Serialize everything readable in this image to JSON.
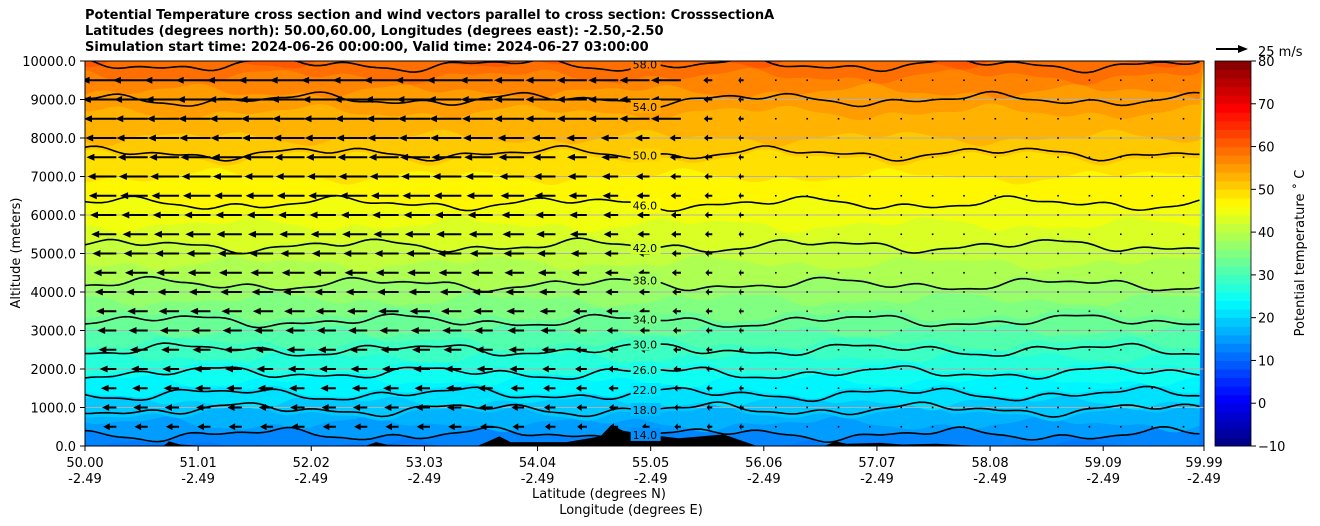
{
  "titles": [
    "Potential Temperature cross section and wind vectors parallel to cross section: CrosssectionA",
    "Latitudes (degrees north): 50.00,60.00, Longitudes (degrees east): -2.50,-2.50",
    "Simulation start time: 2024-06-26 00:00:00, Valid time: 2024-06-27 03:00:00"
  ],
  "chart_data": {
    "type": "heatmap",
    "subtype": "filled contour with contour lines and wind quiver",
    "ylabel": "Altitude (meters)",
    "xlabel_line1": "Latitude (degrees N)",
    "xlabel_line2": "Longitude (degrees E)",
    "ylim": [
      0,
      10000
    ],
    "yticks": [
      "0.0",
      "1000.0",
      "2000.0",
      "3000.0",
      "4000.0",
      "5000.0",
      "6000.0",
      "7000.0",
      "8000.0",
      "9000.0",
      "10000.0"
    ],
    "ytick_values": [
      0,
      1000,
      2000,
      3000,
      4000,
      5000,
      6000,
      7000,
      8000,
      9000,
      10000
    ],
    "xlim": [
      50.0,
      59.99
    ],
    "xtick_values": [
      50.0,
      51.01,
      52.02,
      53.03,
      54.04,
      55.05,
      56.06,
      57.07,
      58.08,
      59.09,
      59.99
    ],
    "xticks_lat": [
      "50.00",
      "51.01",
      "52.02",
      "53.03",
      "54.04",
      "55.05",
      "56.06",
      "57.07",
      "58.08",
      "59.09",
      "59.99"
    ],
    "xticks_lon": [
      "-2.49",
      "-2.49",
      "-2.49",
      "-2.49",
      "-2.49",
      "-2.49",
      "-2.49",
      "-2.49",
      "-2.49",
      "-2.49",
      "-2.49"
    ],
    "grid": "horizontal",
    "colorbar": {
      "label": "Potential temperature ˚ C",
      "ticks": [
        "−10",
        "0",
        "10",
        "20",
        "30",
        "40",
        "50",
        "60",
        "70",
        "80"
      ],
      "tick_values": [
        -10,
        0,
        10,
        20,
        30,
        40,
        50,
        60,
        70,
        80
      ],
      "range": [
        -10,
        80
      ],
      "colormap": "jet"
    },
    "quiver_key": {
      "label": "25 m/s",
      "speed": 25
    },
    "contour_levels": [
      {
        "value": 14,
        "label": "14.0",
        "altitude": 300
      },
      {
        "value": 18,
        "label": "18.0",
        "altitude": 950
      },
      {
        "value": 22,
        "label": "22.0",
        "altitude": 1350
      },
      {
        "value": 26,
        "label": "26.0",
        "altitude": 1900
      },
      {
        "value": 30,
        "label": "30.0",
        "altitude": 2500
      },
      {
        "value": 34,
        "label": "34.0",
        "altitude": 3250
      },
      {
        "value": 38,
        "label": "38.0",
        "altitude": 4200
      },
      {
        "value": 42,
        "label": "42.0",
        "altitude": 5200
      },
      {
        "value": 46,
        "label": "46.0",
        "altitude": 6300
      },
      {
        "value": 50,
        "label": "50.0",
        "altitude": 7600
      },
      {
        "value": 54,
        "label": "54.0",
        "altitude": 9000
      },
      {
        "value": 58,
        "label": "58.0",
        "altitude": 9900
      }
    ],
    "theta_profile": [
      {
        "altitude": 0,
        "theta": 12
      },
      {
        "altitude": 1000,
        "theta": 19
      },
      {
        "altitude": 2000,
        "theta": 26
      },
      {
        "altitude": 3000,
        "theta": 32
      },
      {
        "altitude": 4000,
        "theta": 37
      },
      {
        "altitude": 5000,
        "theta": 41
      },
      {
        "altitude": 6000,
        "theta": 45
      },
      {
        "altitude": 7000,
        "theta": 48
      },
      {
        "altitude": 8000,
        "theta": 52
      },
      {
        "altitude": 9000,
        "theta": 55
      },
      {
        "altitude": 10000,
        "theta": 60
      }
    ],
    "wind_note": "westward (leftward) wind strongest at upper levels south of 55N; near-calm north of 56N",
    "terrain": [
      {
        "lat": 50.0,
        "alt": 0
      },
      {
        "lat": 50.7,
        "alt": 0
      },
      {
        "lat": 50.75,
        "alt": 120
      },
      {
        "lat": 50.85,
        "alt": 40
      },
      {
        "lat": 51.1,
        "alt": 0
      },
      {
        "lat": 52.5,
        "alt": 0
      },
      {
        "lat": 52.6,
        "alt": 100
      },
      {
        "lat": 52.7,
        "alt": 30
      },
      {
        "lat": 53.5,
        "alt": 0
      },
      {
        "lat": 53.6,
        "alt": 120
      },
      {
        "lat": 53.7,
        "alt": 250
      },
      {
        "lat": 53.8,
        "alt": 100
      },
      {
        "lat": 54.3,
        "alt": 100
      },
      {
        "lat": 54.6,
        "alt": 250
      },
      {
        "lat": 54.7,
        "alt": 550
      },
      {
        "lat": 54.8,
        "alt": 400
      },
      {
        "lat": 55.0,
        "alt": 300
      },
      {
        "lat": 55.3,
        "alt": 200
      },
      {
        "lat": 55.5,
        "alt": 250
      },
      {
        "lat": 55.7,
        "alt": 300
      },
      {
        "lat": 55.9,
        "alt": 100
      },
      {
        "lat": 56.0,
        "alt": 0
      },
      {
        "lat": 56.6,
        "alt": 0
      },
      {
        "lat": 56.7,
        "alt": 120
      },
      {
        "lat": 56.8,
        "alt": 60
      },
      {
        "lat": 57.1,
        "alt": 80
      },
      {
        "lat": 57.3,
        "alt": 40
      },
      {
        "lat": 57.6,
        "alt": 60
      },
      {
        "lat": 58.0,
        "alt": 0
      },
      {
        "lat": 59.99,
        "alt": 0
      }
    ]
  }
}
